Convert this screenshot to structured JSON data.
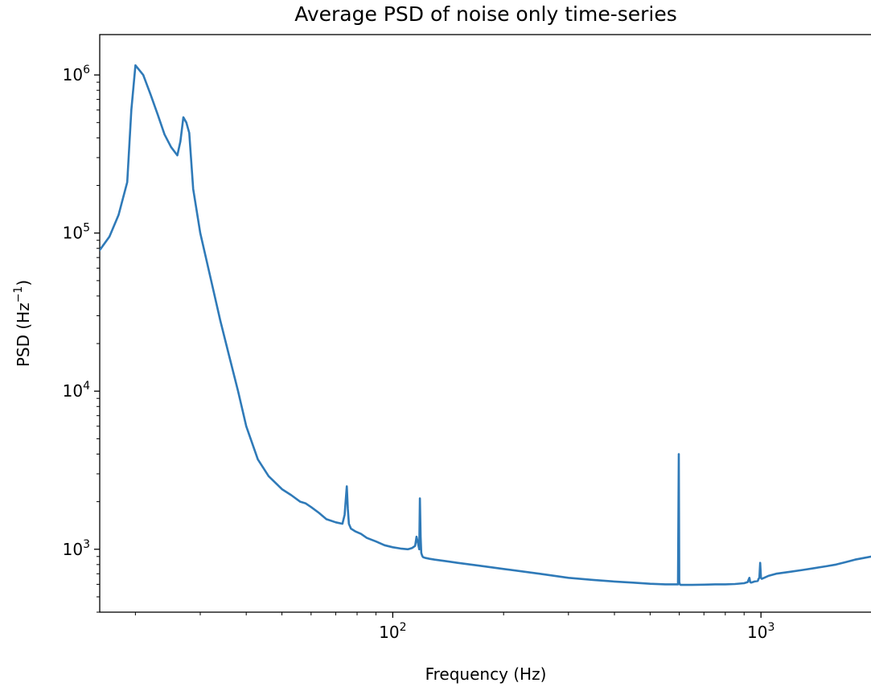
{
  "chart_data": {
    "type": "line",
    "title": "Average PSD of noise only time-series",
    "xlabel": "Frequency (Hz)",
    "ylabel": "PSD (Hz",
    "ylabel_exponent": "−1",
    "xscale": "log",
    "yscale": "log",
    "xlim": [
      16,
      2000
    ],
    "ylim": [
      400,
      1800000
    ],
    "x_ticks": [
      {
        "value": 100,
        "base": "10",
        "exp": "2"
      },
      {
        "value": 1000,
        "base": "10",
        "exp": "3"
      }
    ],
    "y_ticks": [
      {
        "value": 1000,
        "base": "10",
        "exp": "3"
      },
      {
        "value": 10000,
        "base": "10",
        "exp": "4"
      },
      {
        "value": 100000,
        "base": "10",
        "exp": "5"
      },
      {
        "value": 1000000,
        "base": "10",
        "exp": "6"
      }
    ],
    "grid": false,
    "line_color": "#2f7ab8",
    "series": [
      {
        "x": [
          16,
          17,
          18,
          19,
          19.5,
          20,
          21,
          22,
          23,
          24,
          25,
          26,
          26.5,
          27,
          27.5,
          28,
          28.7,
          30,
          32,
          34,
          36,
          38,
          40,
          43,
          46,
          50,
          53,
          56,
          58,
          60,
          63,
          66,
          70,
          73,
          74,
          75,
          75.5,
          76,
          77,
          79,
          82,
          85,
          90,
          95,
          100,
          105,
          110,
          113,
          115,
          116,
          117,
          118,
          118.5,
          119,
          119.5,
          120,
          120.5,
          121,
          123,
          126,
          130,
          140,
          150,
          170,
          200,
          250,
          300,
          350,
          400,
          450,
          500,
          550,
          595,
          598,
          600,
          602,
          605,
          620,
          650,
          700,
          750,
          800,
          850,
          900,
          920,
          930,
          935,
          940,
          950,
          960,
          980,
          985,
          990,
          995,
          1000,
          1005,
          1020,
          1050,
          1100,
          1200,
          1300,
          1400,
          1500,
          1600,
          1700,
          1800,
          1900,
          2000
        ],
        "y": [
          78000,
          95000,
          130000,
          210000,
          600000,
          1150000,
          1000000,
          750000,
          560000,
          420000,
          350000,
          310000,
          380000,
          540000,
          500000,
          430000,
          190000,
          100000,
          52000,
          28000,
          16500,
          10000,
          6000,
          3700,
          2900,
          2400,
          2200,
          2000,
          1950,
          1850,
          1700,
          1550,
          1480,
          1450,
          1650,
          2500,
          1800,
          1450,
          1350,
          1300,
          1250,
          1180,
          1120,
          1060,
          1030,
          1010,
          1000,
          1020,
          1050,
          1200,
          1100,
          1000,
          2100,
          1200,
          950,
          920,
          900,
          890,
          880,
          870,
          860,
          840,
          820,
          790,
          750,
          700,
          660,
          640,
          625,
          615,
          605,
          600,
          600,
          4000,
          620,
          600,
          595,
          595,
          595,
          597,
          600,
          600,
          603,
          610,
          620,
          660,
          620,
          615,
          620,
          625,
          630,
          650,
          660,
          820,
          660,
          650,
          660,
          680,
          700,
          720,
          740,
          760,
          780,
          800,
          830,
          860,
          880,
          900
        ]
      }
    ]
  }
}
